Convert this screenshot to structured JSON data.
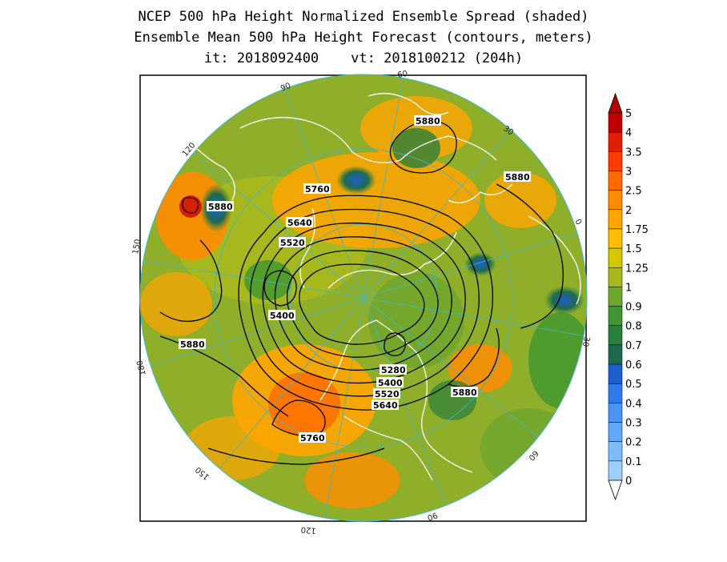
{
  "title": {
    "line1": "NCEP 500 hPa Height Normalized Ensemble Spread (shaded)",
    "line2": "Ensemble Mean 500 hPa Height Forecast (contours, meters)",
    "init": "it: 2018092400",
    "valid": "vt: 2018100212 (204h)"
  },
  "map": {
    "projection": "north polar stereographic",
    "longitude_labels": [
      "60",
      "30",
      "0",
      "30",
      "60",
      "90",
      "120",
      "150",
      "180",
      "150",
      "120",
      "90"
    ],
    "contour_labels": [
      "5880",
      "5880",
      "5760",
      "5880",
      "5640",
      "5520",
      "5400",
      "5880",
      "5280",
      "5400",
      "5520",
      "5640",
      "5880",
      "5760"
    ],
    "colors": {
      "border": "#000000",
      "graticule": "#3fb8c8",
      "coastline": "#ffffff",
      "contour": "#000000"
    }
  },
  "colorbar": {
    "labels": [
      "5",
      "4",
      "3.5",
      "3",
      "2.5",
      "2",
      "1.75",
      "1.5",
      "1.25",
      "1",
      "0.9",
      "0.8",
      "0.7",
      "0.6",
      "0.5",
      "0.4",
      "0.3",
      "0.2",
      "0.1",
      "0"
    ],
    "colors": [
      "#c00000",
      "#e01f00",
      "#ff3c00",
      "#ff6a00",
      "#ff8c00",
      "#ffa500",
      "#ffbe00",
      "#d2c800",
      "#a6b81e",
      "#6ea52e",
      "#3f9630",
      "#2a7f3c",
      "#1f6a4e",
      "#1e5fd0",
      "#2f7bea",
      "#4a94f5",
      "#62a8f8",
      "#7ebcf9",
      "#9ecff8"
    ],
    "under_color": "#ffffff",
    "over_color": "#b00000"
  }
}
